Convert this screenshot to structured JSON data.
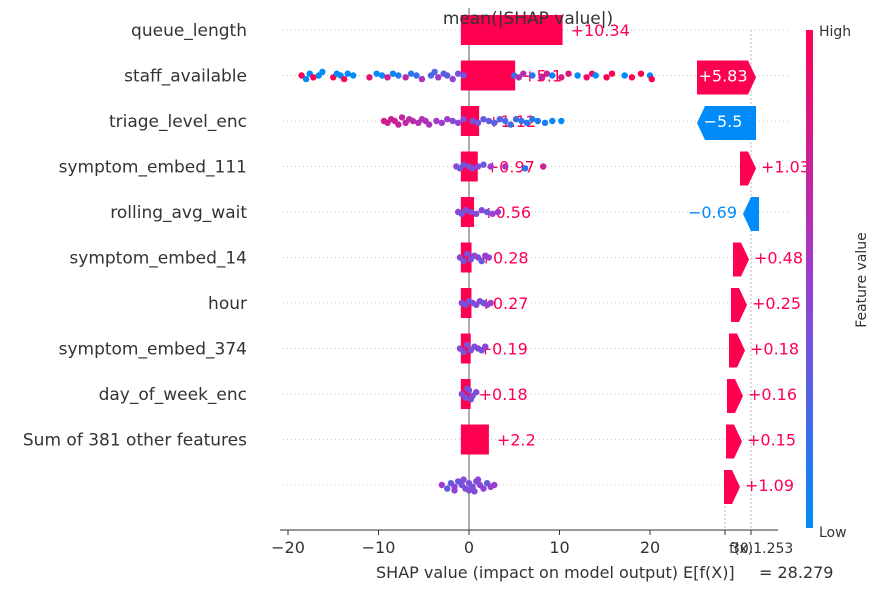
{
  "chart_data": {
    "type": "scatter",
    "title": "mean(|SHAP value|)",
    "xlabel": "SHAP value (impact on model output)",
    "xlim": [
      -21,
      34
    ],
    "xticks": [
      "−20",
      "−10",
      "0",
      "10",
      "20"
    ],
    "xtick_values": [
      -20,
      -10,
      0,
      10,
      20
    ],
    "features": [
      "queue_length",
      "staff_available",
      "triage_level_enc",
      "symptom_embed_111",
      "rolling_avg_wait",
      "symptom_embed_14",
      "hour",
      "symptom_embed_374",
      "day_of_week_enc",
      "Sum of 381 other features"
    ],
    "mean_abs_shap": [
      {
        "value": 10.34,
        "label": "+10.34"
      },
      {
        "value": 5.1,
        "label": "+5.1"
      },
      {
        "value": 1.12,
        "label": "+1.12"
      },
      {
        "value": 0.97,
        "label": "+0.97"
      },
      {
        "value": 0.56,
        "label": "+0.56"
      },
      {
        "value": 0.28,
        "label": "+0.28"
      },
      {
        "value": 0.27,
        "label": "+0.27"
      },
      {
        "value": 0.19,
        "label": "+0.19"
      },
      {
        "value": 0.18,
        "label": "+0.18"
      },
      {
        "value": 2.2,
        "label": "+2.2"
      }
    ],
    "waterfall": {
      "base_label": "E[f(X)]",
      "base_text": "= 28.279",
      "final_label": "f(x)",
      "final_value_text": "30.1.253",
      "contributions": [
        {
          "value": 5.83,
          "label": "+5.83"
        },
        {
          "value": -5.5,
          "label": "−5.5"
        },
        {
          "value": 1.03,
          "label": "+1.03"
        },
        {
          "value": -0.69,
          "label": "−0.69"
        },
        {
          "value": 0.48,
          "label": "+0.48"
        },
        {
          "value": 0.25,
          "label": "+0.25"
        },
        {
          "value": 0.18,
          "label": "+0.18"
        },
        {
          "value": 0.16,
          "label": "+0.16"
        },
        {
          "value": 0.15,
          "label": "+0.15"
        },
        {
          "value": 1.09,
          "label": "+1.09"
        }
      ]
    },
    "beeswarm": [
      {
        "row": 1,
        "points": [
          [
            -18.5,
            0.0
          ],
          [
            -18.0,
            0.2
          ],
          [
            -17.6,
            -0.1
          ],
          [
            -17.2,
            0.1
          ],
          [
            -16.6,
            0.0
          ],
          [
            -16.2,
            -0.2
          ],
          [
            -15.0,
            0.1
          ],
          [
            -14.6,
            -0.1
          ],
          [
            -14.2,
            0.0
          ],
          [
            -13.8,
            0.2
          ],
          [
            -13.4,
            -0.1
          ],
          [
            -12.8,
            0.0
          ],
          [
            -11.0,
            0.1
          ],
          [
            -10.2,
            -0.1
          ],
          [
            -9.6,
            0.0
          ],
          [
            -9.0,
            0.1
          ],
          [
            -8.4,
            -0.1
          ],
          [
            -7.8,
            0.0
          ],
          [
            -7.0,
            0.1
          ],
          [
            -6.4,
            -0.1
          ],
          [
            -5.8,
            0.0
          ],
          [
            -5.2,
            0.2
          ],
          [
            -4.2,
            0.0
          ],
          [
            -3.8,
            -0.2
          ],
          [
            -3.4,
            0.1
          ],
          [
            -2.8,
            -0.1
          ],
          [
            -2.4,
            0.0
          ],
          [
            -1.8,
            0.2
          ],
          [
            -1.2,
            -0.1
          ],
          [
            -0.6,
            0.0
          ],
          [
            5.0,
            0.0
          ],
          [
            5.5,
            0.1
          ],
          [
            6.0,
            -0.1
          ],
          [
            7.0,
            0.0
          ],
          [
            8.0,
            0.1
          ],
          [
            8.6,
            -0.1
          ],
          [
            9.2,
            0.0
          ],
          [
            10.2,
            0.1
          ],
          [
            11.0,
            -0.1
          ],
          [
            12.0,
            0.0
          ],
          [
            13.0,
            0.1
          ],
          [
            13.6,
            -0.1
          ],
          [
            14.0,
            0.0
          ],
          [
            15.2,
            0.1
          ],
          [
            15.8,
            -0.1
          ],
          [
            17.2,
            0.0
          ],
          [
            18.0,
            0.1
          ],
          [
            19.0,
            -0.1
          ],
          [
            20.0,
            0.0
          ],
          [
            20.2,
            0.2
          ]
        ]
      },
      {
        "row": 2,
        "points": [
          [
            -9.4,
            0.0
          ],
          [
            -9.0,
            0.1
          ],
          [
            -8.6,
            -0.1
          ],
          [
            -8.2,
            0.0
          ],
          [
            -7.8,
            0.2
          ],
          [
            -7.4,
            -0.2
          ],
          [
            -7.0,
            0.1
          ],
          [
            -6.6,
            -0.1
          ],
          [
            -6.2,
            0.0
          ],
          [
            -5.6,
            0.1
          ],
          [
            -5.2,
            -0.1
          ],
          [
            -4.8,
            0.0
          ],
          [
            -4.4,
            0.2
          ],
          [
            -3.6,
            0.0
          ],
          [
            -3.0,
            0.1
          ],
          [
            -2.4,
            -0.1
          ],
          [
            -1.8,
            0.0
          ],
          [
            -1.2,
            0.1
          ],
          [
            -0.6,
            -0.1
          ],
          [
            0.4,
            0.0
          ],
          [
            1.0,
            0.1
          ],
          [
            1.6,
            -0.1
          ],
          [
            2.2,
            0.0
          ],
          [
            2.8,
            0.1
          ],
          [
            3.4,
            -0.1
          ],
          [
            4.0,
            0.0
          ],
          [
            4.6,
            0.2
          ],
          [
            5.2,
            -0.1
          ],
          [
            5.8,
            0.0
          ],
          [
            6.4,
            0.1
          ],
          [
            7.0,
            -0.1
          ],
          [
            7.6,
            0.0
          ],
          [
            8.4,
            0.1
          ],
          [
            9.2,
            0.0
          ],
          [
            10.2,
            0.0
          ]
        ]
      },
      {
        "row": 3,
        "points": [
          [
            -1.4,
            0.0
          ],
          [
            -1.0,
            0.1
          ],
          [
            -0.6,
            -0.1
          ],
          [
            0.0,
            0.0
          ],
          [
            0.4,
            0.1
          ],
          [
            1.0,
            0.0
          ],
          [
            1.6,
            -0.1
          ],
          [
            2.4,
            0.0
          ],
          [
            4.0,
            0.0
          ],
          [
            6.2,
            0.1
          ],
          [
            8.2,
            0.0
          ]
        ]
      },
      {
        "row": 4,
        "points": [
          [
            -1.2,
            0.0
          ],
          [
            -0.8,
            0.1
          ],
          [
            -0.4,
            -0.1
          ],
          [
            0.2,
            0.0
          ],
          [
            0.8,
            0.1
          ],
          [
            1.4,
            -0.1
          ],
          [
            2.0,
            0.0
          ],
          [
            2.6,
            0.1
          ],
          [
            3.2,
            0.0
          ]
        ]
      },
      {
        "row": 5,
        "points": [
          [
            -1.0,
            0.0
          ],
          [
            -0.6,
            0.2
          ],
          [
            -0.2,
            -0.2
          ],
          [
            0.2,
            0.1
          ],
          [
            0.6,
            -0.1
          ],
          [
            1.0,
            0.0
          ],
          [
            1.4,
            0.2
          ],
          [
            1.8,
            -0.1
          ],
          [
            2.2,
            0.0
          ]
        ]
      },
      {
        "row": 6,
        "points": [
          [
            -0.8,
            0.0
          ],
          [
            -0.4,
            0.1
          ],
          [
            0.0,
            -0.1
          ],
          [
            0.4,
            0.0
          ],
          [
            0.8,
            0.1
          ],
          [
            1.2,
            -0.1
          ],
          [
            1.6,
            0.0
          ],
          [
            2.0,
            0.1
          ],
          [
            2.4,
            0.0
          ]
        ]
      },
      {
        "row": 7,
        "points": [
          [
            -1.0,
            0.0
          ],
          [
            -0.6,
            0.2
          ],
          [
            -0.2,
            -0.2
          ],
          [
            0.2,
            0.1
          ],
          [
            0.6,
            -0.1
          ],
          [
            1.0,
            0.0
          ],
          [
            1.4,
            0.1
          ],
          [
            1.8,
            -0.1
          ]
        ]
      },
      {
        "row": 8,
        "points": [
          [
            -0.8,
            0.0
          ],
          [
            -0.4,
            0.2
          ],
          [
            0.0,
            -0.2
          ],
          [
            0.4,
            0.1
          ],
          [
            0.8,
            -0.1
          ],
          [
            0.2,
            0.3
          ],
          [
            -0.2,
            -0.3
          ]
        ]
      },
      {
        "row": 10,
        "points": [
          [
            -3.0,
            0.0
          ],
          [
            -2.4,
            0.2
          ],
          [
            -2.0,
            -0.1
          ],
          [
            -1.6,
            0.1
          ],
          [
            -1.2,
            -0.2
          ],
          [
            -0.8,
            0.0
          ],
          [
            -0.4,
            0.2
          ],
          [
            0.0,
            -0.1
          ],
          [
            0.4,
            0.1
          ],
          [
            0.8,
            -0.2
          ],
          [
            1.2,
            0.0
          ],
          [
            1.6,
            0.2
          ],
          [
            2.0,
            -0.1
          ],
          [
            2.4,
            0.1
          ],
          [
            2.8,
            0.0
          ],
          [
            -1.6,
            0.3
          ],
          [
            0.0,
            0.3
          ],
          [
            1.0,
            -0.3
          ],
          [
            -0.6,
            -0.3
          ],
          [
            0.6,
            0.35
          ]
        ]
      }
    ],
    "colorbar": {
      "high_label": "High",
      "low_label": "Low",
      "title": "Feature value"
    },
    "colors": {
      "high": "#ff0051",
      "low": "#008bfb",
      "mid": "#9b3fd0",
      "grid": "#cccccc",
      "base_text": "#999999"
    }
  }
}
